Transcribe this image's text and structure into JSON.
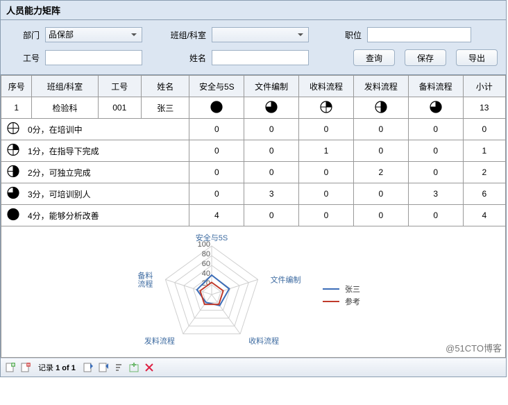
{
  "title": "人员能力矩阵",
  "filters": {
    "dept_label": "部门",
    "team_label": "班组/科室",
    "post_label": "职位",
    "empno_label": "工号",
    "name_label": "姓名",
    "dept_value": "品保部",
    "team_value": "",
    "post_value": "",
    "empno_value": "",
    "name_value": ""
  },
  "buttons": {
    "query": "查询",
    "save": "保存",
    "export": "导出"
  },
  "table": {
    "head": [
      "序号",
      "班组/科室",
      "工号",
      "姓名",
      "安全与5S",
      "文件编制",
      "收料流程",
      "发料流程",
      "备料流程",
      "小计"
    ],
    "row1": {
      "seq": "1",
      "team": "检验科",
      "empno": "001",
      "name": "张三",
      "levels": [
        4,
        3,
        1,
        2,
        3
      ],
      "total": "13"
    },
    "legend": [
      {
        "score": 0,
        "text": "0分，在培训中",
        "cells": [
          "0",
          "0",
          "0",
          "0",
          "0",
          "0"
        ]
      },
      {
        "score": 1,
        "text": "1分，在指导下完成",
        "cells": [
          "0",
          "0",
          "1",
          "0",
          "0",
          "1"
        ]
      },
      {
        "score": 2,
        "text": "2分，可独立完成",
        "cells": [
          "0",
          "0",
          "0",
          "2",
          "0",
          "2"
        ]
      },
      {
        "score": 3,
        "text": "3分，可培训别人",
        "cells": [
          "0",
          "3",
          "0",
          "0",
          "3",
          "6"
        ]
      },
      {
        "score": 4,
        "text": "4分，能够分析改善",
        "cells": [
          "4",
          "0",
          "0",
          "0",
          "0",
          "4"
        ]
      }
    ]
  },
  "chart": {
    "axes": [
      "安全与5S",
      "文件编制",
      "收料流程",
      "发料流程",
      "备料流程"
    ],
    "ticks": [
      "20",
      "40",
      "60",
      "80",
      "100"
    ],
    "series": [
      {
        "name": "张三",
        "color": "#3b6db8",
        "values": [
          40,
          38,
          28,
          20,
          32
        ]
      },
      {
        "name": "参考",
        "color": "#c03a2b",
        "values": [
          25,
          25,
          25,
          25,
          25
        ]
      }
    ],
    "background": "#ffffff",
    "grid_color": "#cfcfcf",
    "tick_font_size": 9,
    "axis_label_color": "#3c6aa0",
    "legend_line_length": 24
  },
  "footer": {
    "record_label_prefix": "记录",
    "record_value": "1",
    "record_of": "of",
    "record_total": "1"
  },
  "watermark": "@51CTO博客"
}
